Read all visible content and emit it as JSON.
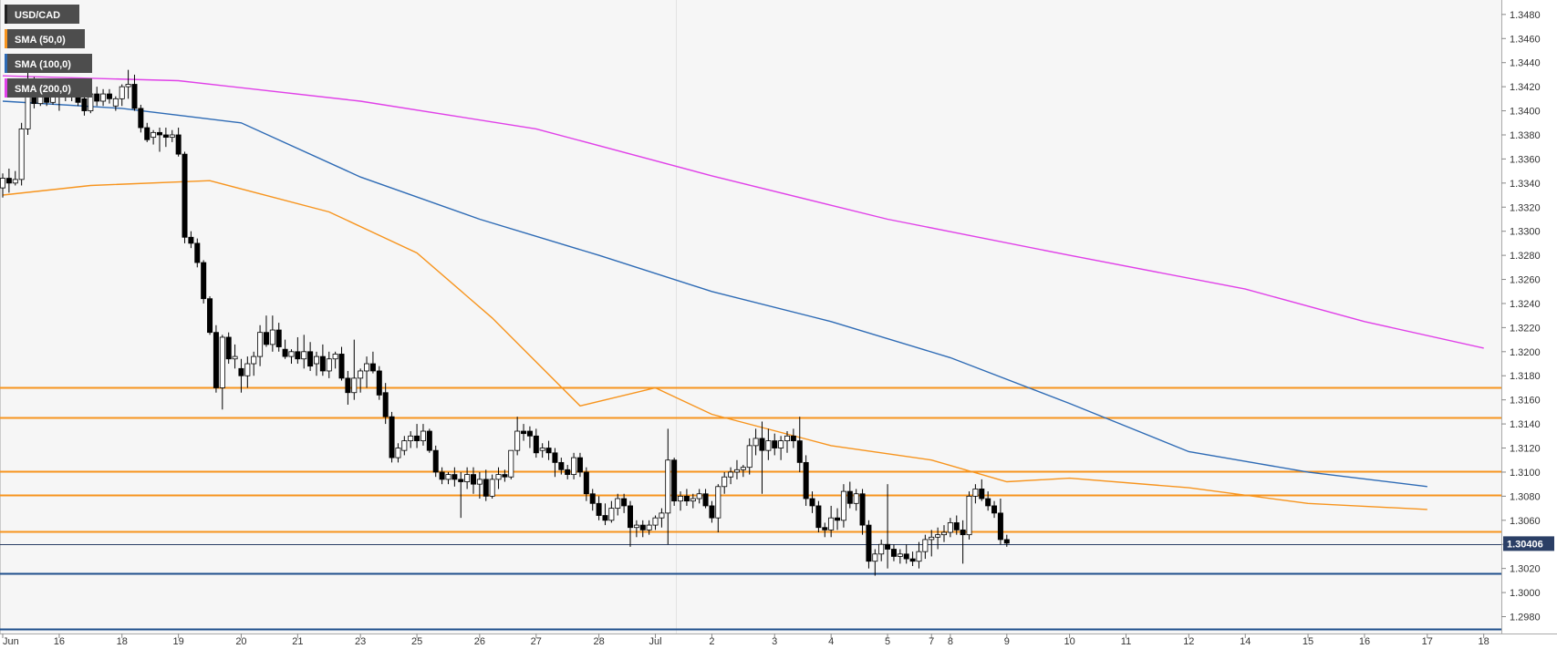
{
  "chart_data": {
    "type": "candlestick",
    "symbol": "USD/CAD",
    "indicators": [
      {
        "name": "SMA (50,0)",
        "color": "#f7941d"
      },
      {
        "name": "SMA (100,0)",
        "color": "#2e6bb5"
      },
      {
        "name": "SMA (200,0)",
        "color": "#e040e8"
      }
    ],
    "last_price": "1.30406",
    "ylim": [
      1.2966,
      1.3492
    ],
    "y_ticks": [
      "1.3480",
      "1.3460",
      "1.3440",
      "1.3420",
      "1.3400",
      "1.3380",
      "1.3360",
      "1.3340",
      "1.3320",
      "1.3300",
      "1.3280",
      "1.3260",
      "1.3240",
      "1.3220",
      "1.3200",
      "1.3180",
      "1.3160",
      "1.3140",
      "1.3120",
      "1.3100",
      "1.3080",
      "1.3060",
      "1.3040",
      "1.3020",
      "1.3000",
      "1.2980"
    ],
    "x_ticks": [
      {
        "label": "Jun",
        "i": 0
      },
      {
        "label": "16",
        "i": 9
      },
      {
        "label": "18",
        "i": 19
      },
      {
        "label": "19",
        "i": 28
      },
      {
        "label": "20",
        "i": 38
      },
      {
        "label": "21",
        "i": 47
      },
      {
        "label": "23",
        "i": 57
      },
      {
        "label": "25",
        "i": 66
      },
      {
        "label": "26",
        "i": 76
      },
      {
        "label": "27",
        "i": 85
      },
      {
        "label": "28",
        "i": 95
      },
      {
        "label": "Jul",
        "i": 104
      },
      {
        "label": "2",
        "i": 113
      },
      {
        "label": "3",
        "i": 123
      },
      {
        "label": "4",
        "i": 132
      },
      {
        "label": "5",
        "i": 141
      },
      {
        "label": "7",
        "i": 148
      },
      {
        "label": "8",
        "i": 151
      },
      {
        "label": "9",
        "i": 160
      },
      {
        "label": "10",
        "i": 170
      },
      {
        "label": "11",
        "i": 179
      },
      {
        "label": "12",
        "i": 189
      },
      {
        "label": "14",
        "i": 198
      },
      {
        "label": "15",
        "i": 208
      },
      {
        "label": "16",
        "i": 217
      },
      {
        "label": "17",
        "i": 227
      },
      {
        "label": "18",
        "i": 236
      }
    ],
    "horizontal_levels": [
      {
        "price": 1.317,
        "color": "#f7941d"
      },
      {
        "price": 1.3145,
        "color": "#f7941d"
      },
      {
        "price": 1.3101,
        "color": "#f7941d"
      },
      {
        "price": 1.3081,
        "color": "#f7941d"
      },
      {
        "price": 1.3051,
        "color": "#f7941d"
      },
      {
        "price": 1.304,
        "color": "#2b3f66"
      },
      {
        "price": 1.3016,
        "color": "#1f4f8c"
      },
      {
        "price": 1.297,
        "color": "#1f4f8c"
      }
    ],
    "sma50": [
      [
        0,
        1.333
      ],
      [
        14,
        1.3338
      ],
      [
        33,
        1.3342
      ],
      [
        52,
        1.3316
      ],
      [
        66,
        1.3282
      ],
      [
        78,
        1.3228
      ],
      [
        92,
        1.3155
      ],
      [
        104,
        1.317
      ],
      [
        113,
        1.3148
      ],
      [
        132,
        1.3122
      ],
      [
        148,
        1.311
      ],
      [
        160,
        1.3092
      ],
      [
        170,
        1.3095
      ],
      [
        189,
        1.3087
      ],
      [
        208,
        1.3074
      ],
      [
        227,
        1.3069
      ]
    ],
    "sma100": [
      [
        0,
        1.3408
      ],
      [
        19,
        1.3402
      ],
      [
        38,
        1.339
      ],
      [
        57,
        1.3345
      ],
      [
        76,
        1.331
      ],
      [
        95,
        1.328
      ],
      [
        113,
        1.325
      ],
      [
        132,
        1.3225
      ],
      [
        151,
        1.3195
      ],
      [
        170,
        1.3157
      ],
      [
        189,
        1.3117
      ],
      [
        208,
        1.31
      ],
      [
        227,
        1.3088
      ]
    ],
    "sma200": [
      [
        0,
        1.3429
      ],
      [
        28,
        1.3425
      ],
      [
        57,
        1.3408
      ],
      [
        85,
        1.3385
      ],
      [
        113,
        1.3346
      ],
      [
        141,
        1.331
      ],
      [
        170,
        1.328
      ],
      [
        198,
        1.3252
      ],
      [
        217,
        1.3225
      ],
      [
        236,
        1.3203
      ]
    ],
    "ohlc": [
      [
        1.3336,
        1.3348,
        1.3328,
        1.3344
      ],
      [
        1.3344,
        1.3352,
        1.3332,
        1.334
      ],
      [
        1.334,
        1.335,
        1.3338,
        1.3343
      ],
      [
        1.3343,
        1.339,
        1.3338,
        1.3385
      ],
      [
        1.3385,
        1.3432,
        1.338,
        1.342
      ],
      [
        1.342,
        1.3428,
        1.3402,
        1.3406
      ],
      [
        1.3406,
        1.3418,
        1.3404,
        1.3414
      ],
      [
        1.3414,
        1.342,
        1.3404,
        1.3407
      ],
      [
        1.3407,
        1.3422,
        1.3405,
        1.3412
      ],
      [
        1.3412,
        1.342,
        1.34,
        1.3414
      ],
      [
        1.3414,
        1.3424,
        1.3408,
        1.3418
      ],
      [
        1.3418,
        1.3424,
        1.3408,
        1.3412
      ],
      [
        1.3412,
        1.3418,
        1.3404,
        1.3407
      ],
      [
        1.341,
        1.3416,
        1.3396,
        1.34
      ],
      [
        1.34,
        1.3419,
        1.3398,
        1.3414
      ],
      [
        1.3414,
        1.342,
        1.3404,
        1.3408
      ],
      [
        1.3408,
        1.3418,
        1.3404,
        1.3414
      ],
      [
        1.3414,
        1.3418,
        1.3406,
        1.341
      ],
      [
        1.3404,
        1.3412,
        1.34,
        1.341
      ],
      [
        1.341,
        1.3422,
        1.3404,
        1.342
      ],
      [
        1.342,
        1.3434,
        1.341,
        1.3422
      ],
      [
        1.3422,
        1.343,
        1.34,
        1.3402
      ],
      [
        1.3402,
        1.3405,
        1.3382,
        1.3386
      ],
      [
        1.3386,
        1.339,
        1.3374,
        1.3376
      ],
      [
        1.3378,
        1.3384,
        1.3372,
        1.3382
      ],
      [
        1.3382,
        1.3386,
        1.3366,
        1.338
      ],
      [
        1.338,
        1.3386,
        1.337,
        1.3378
      ],
      [
        1.3378,
        1.3384,
        1.3374,
        1.338
      ],
      [
        1.338,
        1.3386,
        1.3362,
        1.3364
      ],
      [
        1.3364,
        1.3366,
        1.329,
        1.3295
      ],
      [
        1.3295,
        1.33,
        1.3286,
        1.329
      ],
      [
        1.329,
        1.3294,
        1.327,
        1.3274
      ],
      [
        1.3274,
        1.3276,
        1.324,
        1.3244
      ],
      [
        1.3244,
        1.3246,
        1.3214,
        1.3216
      ],
      [
        1.3216,
        1.3222,
        1.3166,
        1.317
      ],
      [
        1.317,
        1.3214,
        1.3152,
        1.3212
      ],
      [
        1.3212,
        1.3216,
        1.319,
        1.3194
      ],
      [
        1.3194,
        1.3206,
        1.3186,
        1.3196
      ],
      [
        1.3186,
        1.3194,
        1.3166,
        1.318
      ],
      [
        1.318,
        1.3196,
        1.317,
        1.319
      ],
      [
        1.319,
        1.32,
        1.318,
        1.3196
      ],
      [
        1.3196,
        1.3222,
        1.3188,
        1.3216
      ],
      [
        1.3216,
        1.323,
        1.3204,
        1.3206
      ],
      [
        1.3206,
        1.323,
        1.32,
        1.3218
      ],
      [
        1.3218,
        1.3224,
        1.32,
        1.3204
      ],
      [
        1.3202,
        1.321,
        1.3194,
        1.3196
      ],
      [
        1.3196,
        1.3202,
        1.319,
        1.32
      ],
      [
        1.32,
        1.3212,
        1.319,
        1.3194
      ],
      [
        1.3194,
        1.3214,
        1.3186,
        1.32
      ],
      [
        1.32,
        1.3208,
        1.3184,
        1.3188
      ],
      [
        1.319,
        1.32,
        1.318,
        1.3196
      ],
      [
        1.3196,
        1.3206,
        1.318,
        1.3184
      ],
      [
        1.3184,
        1.32,
        1.3178,
        1.3194
      ],
      [
        1.3194,
        1.32,
        1.3186,
        1.3198
      ],
      [
        1.3198,
        1.3204,
        1.3176,
        1.3178
      ],
      [
        1.3178,
        1.3184,
        1.3156,
        1.3166
      ],
      [
        1.3166,
        1.321,
        1.316,
        1.3178
      ],
      [
        1.3178,
        1.3186,
        1.3166,
        1.3184
      ],
      [
        1.3184,
        1.3196,
        1.317,
        1.319
      ],
      [
        1.319,
        1.32,
        1.3182,
        1.3184
      ],
      [
        1.3184,
        1.3188,
        1.316,
        1.3164
      ],
      [
        1.3166,
        1.3174,
        1.314,
        1.3146
      ],
      [
        1.3146,
        1.315,
        1.3108,
        1.3112
      ],
      [
        1.3112,
        1.3124,
        1.3108,
        1.312
      ],
      [
        1.3118,
        1.313,
        1.3114,
        1.3126
      ],
      [
        1.3126,
        1.3134,
        1.312,
        1.313
      ],
      [
        1.313,
        1.314,
        1.312,
        1.3126
      ],
      [
        1.3126,
        1.314,
        1.3122,
        1.3134
      ],
      [
        1.3134,
        1.3136,
        1.3116,
        1.3118
      ],
      [
        1.3118,
        1.3122,
        1.3096,
        1.31
      ],
      [
        1.31,
        1.3104,
        1.309,
        1.3094
      ],
      [
        1.3094,
        1.31,
        1.309,
        1.3098
      ],
      [
        1.3098,
        1.3104,
        1.3088,
        1.3094
      ],
      [
        1.3094,
        1.31,
        1.3062,
        1.3092
      ],
      [
        1.3092,
        1.3104,
        1.3086,
        1.3098
      ],
      [
        1.3098,
        1.3104,
        1.3082,
        1.309
      ],
      [
        1.309,
        1.31,
        1.3078,
        1.3094
      ],
      [
        1.3094,
        1.3102,
        1.3076,
        1.308
      ],
      [
        1.308,
        1.3098,
        1.3078,
        1.3094
      ],
      [
        1.3094,
        1.3104,
        1.3086,
        1.3098
      ],
      [
        1.3098,
        1.3102,
        1.3092,
        1.3096
      ],
      [
        1.3096,
        1.3118,
        1.3094,
        1.3118
      ],
      [
        1.3118,
        1.3146,
        1.3114,
        1.3134
      ],
      [
        1.3134,
        1.314,
        1.3126,
        1.3132
      ],
      [
        1.3134,
        1.3138,
        1.312,
        1.313
      ],
      [
        1.313,
        1.3136,
        1.3112,
        1.3116
      ],
      [
        1.3118,
        1.3124,
        1.3112,
        1.312
      ],
      [
        1.312,
        1.3126,
        1.311,
        1.3116
      ],
      [
        1.3116,
        1.312,
        1.3096,
        1.3108
      ],
      [
        1.3108,
        1.3112,
        1.3098,
        1.3102
      ],
      [
        1.3102,
        1.3106,
        1.3094,
        1.3098
      ],
      [
        1.3098,
        1.3116,
        1.3094,
        1.3112
      ],
      [
        1.3112,
        1.3116,
        1.3096,
        1.31
      ],
      [
        1.31,
        1.3104,
        1.3076,
        1.3082
      ],
      [
        1.3082,
        1.3086,
        1.3068,
        1.3074
      ],
      [
        1.3074,
        1.308,
        1.306,
        1.3064
      ],
      [
        1.3064,
        1.3074,
        1.3056,
        1.306
      ],
      [
        1.306,
        1.3076,
        1.3058,
        1.307
      ],
      [
        1.307,
        1.3082,
        1.3064,
        1.3078
      ],
      [
        1.3078,
        1.3082,
        1.3066,
        1.3072
      ],
      [
        1.3072,
        1.3076,
        1.3038,
        1.3054
      ],
      [
        1.3054,
        1.306,
        1.3046,
        1.3056
      ],
      [
        1.3056,
        1.306,
        1.3046,
        1.3052
      ],
      [
        1.3052,
        1.306,
        1.3048,
        1.3056
      ],
      [
        1.3056,
        1.3064,
        1.3052,
        1.3062
      ],
      [
        1.3062,
        1.307,
        1.3054,
        1.3066
      ],
      [
        1.3066,
        1.3136,
        1.304,
        1.311
      ],
      [
        1.311,
        1.3112,
        1.3072,
        1.3076
      ],
      [
        1.3076,
        1.3084,
        1.3068,
        1.308
      ],
      [
        1.308,
        1.3086,
        1.3072,
        1.3076
      ],
      [
        1.3076,
        1.3082,
        1.307,
        1.3078
      ],
      [
        1.3078,
        1.3086,
        1.3074,
        1.3082
      ],
      [
        1.3082,
        1.3086,
        1.307,
        1.3072
      ],
      [
        1.3072,
        1.3076,
        1.3058,
        1.3062
      ],
      [
        1.3062,
        1.309,
        1.305,
        1.3088
      ],
      [
        1.3088,
        1.31,
        1.3082,
        1.3096
      ],
      [
        1.3096,
        1.3104,
        1.309,
        1.31
      ],
      [
        1.31,
        1.311,
        1.3094,
        1.3102
      ],
      [
        1.3102,
        1.3106,
        1.3096,
        1.3104
      ],
      [
        1.3104,
        1.3128,
        1.3098,
        1.3122
      ],
      [
        1.3122,
        1.3136,
        1.3114,
        1.3128
      ],
      [
        1.3128,
        1.3142,
        1.3082,
        1.3118
      ],
      [
        1.3118,
        1.3136,
        1.311,
        1.3126
      ],
      [
        1.3126,
        1.3132,
        1.3114,
        1.312
      ],
      [
        1.312,
        1.313,
        1.311,
        1.3126
      ],
      [
        1.3126,
        1.3134,
        1.3116,
        1.313
      ],
      [
        1.313,
        1.3136,
        1.312,
        1.3126
      ],
      [
        1.3126,
        1.3146,
        1.31,
        1.3108
      ],
      [
        1.3108,
        1.3114,
        1.3072,
        1.3078
      ],
      [
        1.3078,
        1.3084,
        1.3066,
        1.3072
      ],
      [
        1.3072,
        1.3076,
        1.305,
        1.3054
      ],
      [
        1.3054,
        1.3058,
        1.3046,
        1.3052
      ],
      [
        1.3052,
        1.3072,
        1.3046,
        1.3062
      ],
      [
        1.3062,
        1.307,
        1.3052,
        1.306
      ],
      [
        1.306,
        1.309,
        1.3054,
        1.3084
      ],
      [
        1.3084,
        1.3092,
        1.307,
        1.3074
      ],
      [
        1.3074,
        1.3086,
        1.3068,
        1.3082
      ],
      [
        1.3082,
        1.3086,
        1.3048,
        1.3056
      ],
      [
        1.3056,
        1.306,
        1.302,
        1.3026
      ],
      [
        1.3026,
        1.3036,
        1.3014,
        1.3032
      ],
      [
        1.3032,
        1.3044,
        1.3026,
        1.304
      ],
      [
        1.304,
        1.309,
        1.302,
        1.3036
      ],
      [
        1.3036,
        1.304,
        1.3026,
        1.303
      ],
      [
        1.303,
        1.3036,
        1.3024,
        1.3032
      ],
      [
        1.3032,
        1.304,
        1.3024,
        1.3028
      ],
      [
        1.3028,
        1.3034,
        1.3022,
        1.3026
      ],
      [
        1.3026,
        1.3042,
        1.302,
        1.3034
      ],
      [
        1.3034,
        1.3048,
        1.3028,
        1.3044
      ],
      [
        1.3044,
        1.3052,
        1.303,
        1.3046
      ],
      [
        1.3046,
        1.3054,
        1.3036,
        1.3048
      ],
      [
        1.3048,
        1.3056,
        1.3042,
        1.305
      ],
      [
        1.305,
        1.3062,
        1.3046,
        1.3058
      ],
      [
        1.3058,
        1.3064,
        1.3048,
        1.3052
      ],
      [
        1.3052,
        1.306,
        1.3024,
        1.3048
      ],
      [
        1.3048,
        1.3084,
        1.3044,
        1.308
      ],
      [
        1.308,
        1.309,
        1.3074,
        1.3086
      ],
      [
        1.3086,
        1.3094,
        1.3076,
        1.3078
      ],
      [
        1.3078,
        1.3084,
        1.3068,
        1.3072
      ],
      [
        1.3072,
        1.3076,
        1.3062,
        1.3066
      ],
      [
        1.3066,
        1.3078,
        1.304,
        1.3044
      ],
      [
        1.3044,
        1.3048,
        1.3038,
        1.3041
      ]
    ]
  }
}
